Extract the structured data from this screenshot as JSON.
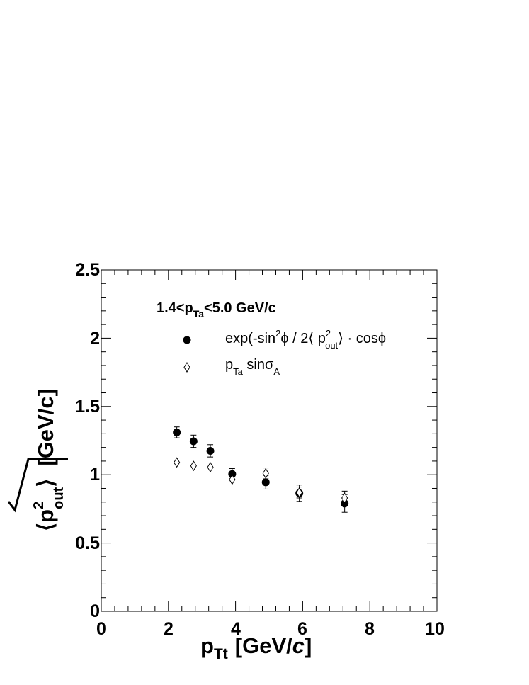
{
  "chart_data": {
    "type": "scatter",
    "xlabel": {
      "main": "p",
      "sub": "Tt",
      "unit_open": "[GeV/",
      "unit_italic": "c",
      "unit_close": "]"
    },
    "ylabel": {
      "base": "p",
      "sup": "2",
      "sub": "out",
      "unit": "[GeV/c]"
    },
    "xlim": [
      0,
      10
    ],
    "ylim": [
      0,
      2.5
    ],
    "x_ticks": [
      "0",
      "2",
      "4",
      "6",
      "8",
      "10"
    ],
    "y_ticks": [
      "0",
      "0.5",
      "1",
      "1.5",
      "2",
      "2.5"
    ],
    "grid": false,
    "legend_position": "top-left",
    "legend_header": {
      "a": "1.4<p",
      "sub": "Ta",
      "b": "<5.0 GeV/c"
    },
    "series": [
      {
        "name": "exp(-sin²ϕ / 2⟨p²out⟩ · cosϕ",
        "legend": {
          "a": "exp(-sin",
          "sup1": "2",
          "b": "ϕ / 2⟨ p",
          "sup2": "2",
          "sub2": "out",
          "c": "⟩ · cosϕ"
        },
        "marker": "filled-circle",
        "points": [
          {
            "x": 2.25,
            "y": 1.31,
            "err": 0.04
          },
          {
            "x": 2.75,
            "y": 1.245,
            "err": 0.045
          },
          {
            "x": 3.25,
            "y": 1.175,
            "err": 0.045
          },
          {
            "x": 3.9,
            "y": 1.005,
            "err": 0.04
          },
          {
            "x": 4.9,
            "y": 0.945,
            "err": 0.05
          },
          {
            "x": 5.9,
            "y": 0.865,
            "err": 0.06
          },
          {
            "x": 7.25,
            "y": 0.79,
            "err": 0.065
          }
        ]
      },
      {
        "name": "pTa sinσA",
        "legend": {
          "a": "p",
          "sub1": "Ta",
          "b": " sinσ",
          "sub2": "A"
        },
        "marker": "open-diamond",
        "points": [
          {
            "x": 2.25,
            "y": 1.09,
            "err": 0
          },
          {
            "x": 2.75,
            "y": 1.065,
            "err": 0
          },
          {
            "x": 3.25,
            "y": 1.055,
            "err": 0
          },
          {
            "x": 3.9,
            "y": 0.965,
            "err": 0
          },
          {
            "x": 4.9,
            "y": 1.01,
            "err": 0.04
          },
          {
            "x": 5.9,
            "y": 0.87,
            "err": 0.04
          },
          {
            "x": 7.25,
            "y": 0.83,
            "err": 0.05
          }
        ]
      }
    ]
  }
}
